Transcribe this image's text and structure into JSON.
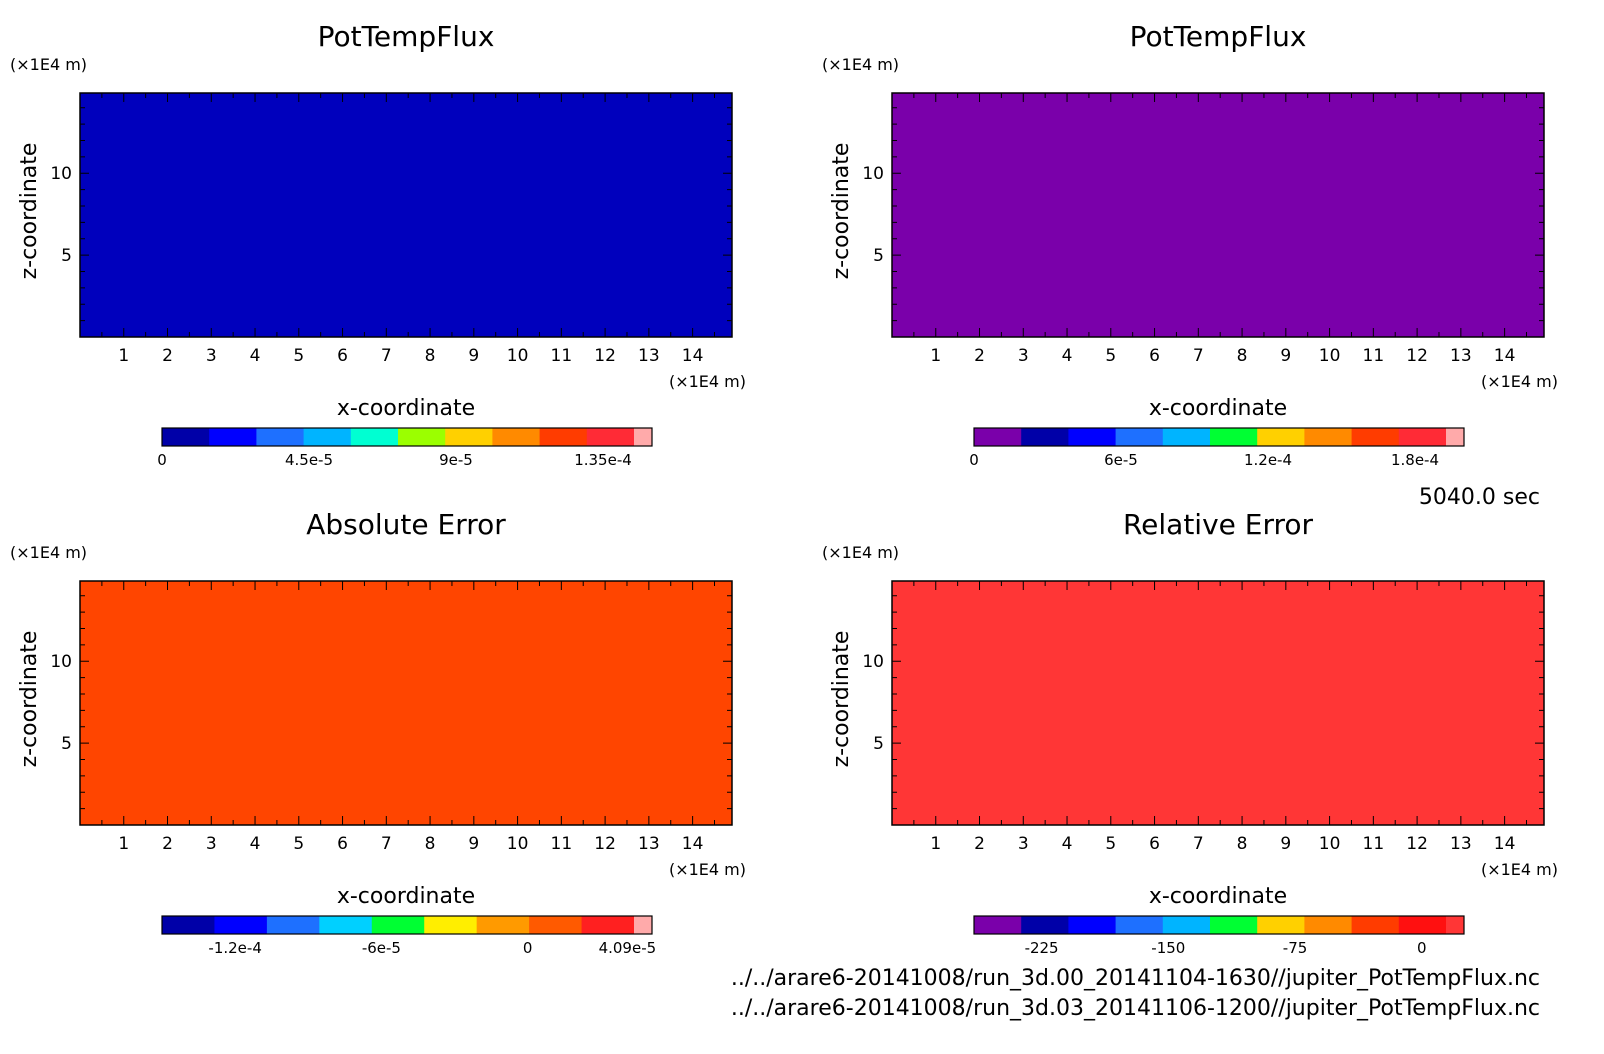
{
  "time_label": "5040.0 sec",
  "files": [
    "../../arare6-20141008/run_3d.00_20141104-1630//jupiter_PotTempFlux.nc",
    "../../arare6-20141008/run_3d.03_20141106-1200//jupiter_PotTempFlux.nc"
  ],
  "chart_data": [
    {
      "type": "heatmap",
      "title": "PotTempFlux",
      "xlabel": "x-coordinate",
      "ylabel": "z-coordinate",
      "x_unit": "(×1E4 m)",
      "y_unit": "(×1E4 m)",
      "xlim": [
        0,
        14.9
      ],
      "ylim": [
        0,
        14.9
      ],
      "xticks": [
        1,
        2,
        3,
        4,
        5,
        6,
        7,
        8,
        9,
        10,
        11,
        12,
        13,
        14
      ],
      "yticks": [
        5,
        10
      ],
      "fill_color": "#0000bd",
      "colorbar": {
        "colors": [
          "#0000a8",
          "#0000ff",
          "#1e70ff",
          "#00b4ff",
          "#00ffd2",
          "#9bff00",
          "#ffd000",
          "#ff8a00",
          "#ff3c00",
          "#ff2b36",
          "#ffaaaa"
        ],
        "tick_labels": [
          "0",
          "4.5e-5",
          "9e-5",
          "1.35e-4"
        ],
        "tick_values": [
          0,
          4.5e-05,
          9e-05,
          0.000135
        ],
        "range": [
          0,
          0.00015
        ]
      }
    },
    {
      "type": "heatmap",
      "title": "PotTempFlux",
      "xlabel": "x-coordinate",
      "ylabel": "z-coordinate",
      "x_unit": "(×1E4 m)",
      "y_unit": "(×1E4 m)",
      "xlim": [
        0,
        14.9
      ],
      "ylim": [
        0,
        14.9
      ],
      "xticks": [
        1,
        2,
        3,
        4,
        5,
        6,
        7,
        8,
        9,
        10,
        11,
        12,
        13,
        14
      ],
      "yticks": [
        5,
        10
      ],
      "fill_color": "#7a00aa",
      "colorbar": {
        "colors": [
          "#7a00aa",
          "#0000a8",
          "#0000ff",
          "#1e70ff",
          "#00b4ff",
          "#00ff33",
          "#ffd000",
          "#ff8a00",
          "#ff3c00",
          "#ff2b36",
          "#ffaaaa"
        ],
        "tick_labels": [
          "0",
          "6e-5",
          "1.2e-4",
          "1.8e-4"
        ],
        "tick_values": [
          0,
          6e-05,
          0.00012,
          0.00018
        ],
        "range": [
          0,
          0.0002
        ]
      }
    },
    {
      "type": "heatmap",
      "title": "Absolute Error",
      "xlabel": "x-coordinate",
      "ylabel": "z-coordinate",
      "x_unit": "(×1E4 m)",
      "y_unit": "(×1E4 m)",
      "xlim": [
        0,
        14.9
      ],
      "ylim": [
        0,
        14.9
      ],
      "xticks": [
        1,
        2,
        3,
        4,
        5,
        6,
        7,
        8,
        9,
        10,
        11,
        12,
        13,
        14
      ],
      "yticks": [
        5,
        10
      ],
      "fill_color": "#ff4500",
      "colorbar": {
        "colors": [
          "#0000a8",
          "#0000ff",
          "#1e70ff",
          "#00d0ff",
          "#00ff33",
          "#ffee00",
          "#ff9a00",
          "#ff5a00",
          "#ff2020",
          "#ffaaaa"
        ],
        "tick_labels": [
          "-1.2e-4",
          "-6e-5",
          "0",
          "4.09e-5"
        ],
        "tick_values": [
          -0.00012,
          -6e-05,
          0,
          4.09e-05
        ],
        "range": [
          -0.00015,
          5.1e-05
        ]
      }
    },
    {
      "type": "heatmap",
      "title": "Relative Error",
      "xlabel": "x-coordinate",
      "ylabel": "z-coordinate",
      "x_unit": "(×1E4 m)",
      "y_unit": "(×1E4 m)",
      "xlim": [
        0,
        14.9
      ],
      "ylim": [
        0,
        14.9
      ],
      "xticks": [
        1,
        2,
        3,
        4,
        5,
        6,
        7,
        8,
        9,
        10,
        11,
        12,
        13,
        14
      ],
      "yticks": [
        5,
        10
      ],
      "fill_color": "#ff3636",
      "colorbar": {
        "colors": [
          "#7a00aa",
          "#0000a8",
          "#0000ff",
          "#1e70ff",
          "#00b4ff",
          "#00ff33",
          "#ffd000",
          "#ff8a00",
          "#ff3c00",
          "#ff1010",
          "#ff3636"
        ],
        "tick_labels": [
          "-225",
          "-150",
          "-75",
          "0"
        ],
        "tick_values": [
          -225,
          -150,
          -75,
          0
        ],
        "range": [
          -265,
          25
        ]
      }
    }
  ]
}
